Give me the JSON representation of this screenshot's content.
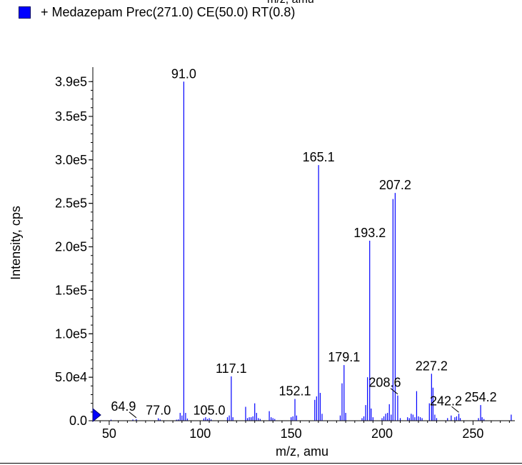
{
  "header": {
    "top_axis_label": "m/z, amu",
    "legend_label": "+ Medazepam Prec(271.0) CE(50.0) RT(0.8)"
  },
  "colors": {
    "series": "#0000ff",
    "axis": "#000000"
  },
  "chart_data": {
    "type": "bar",
    "xlabel": "m/z, amu",
    "ylabel": "Intensity, cps",
    "xlim": [
      41,
      273
    ],
    "ylim": [
      0,
      405000
    ],
    "x_ticks": [
      50,
      100,
      150,
      200,
      250
    ],
    "y_ticks": [
      {
        "value": 0,
        "label": "0.0"
      },
      {
        "value": 50000,
        "label": "5.0e4"
      },
      {
        "value": 100000,
        "label": "1.0e5"
      },
      {
        "value": 150000,
        "label": "1.5e5"
      },
      {
        "value": 200000,
        "label": "2.0e5"
      },
      {
        "value": 250000,
        "label": "2.5e5"
      },
      {
        "value": 300000,
        "label": "3.0e5"
      },
      {
        "value": 350000,
        "label": "3.5e5"
      },
      {
        "value": 390000,
        "label": "3.9e5"
      }
    ],
    "grid": false,
    "legend": "top-left",
    "peaks": [
      {
        "x": 51.0,
        "y": 1200
      },
      {
        "x": 63.0,
        "y": 1400
      },
      {
        "x": 64.9,
        "y": 1800
      },
      {
        "x": 77.0,
        "y": 2800
      },
      {
        "x": 78.0,
        "y": 1500
      },
      {
        "x": 87.0,
        "y": 1200
      },
      {
        "x": 88.0,
        "y": 1500
      },
      {
        "x": 89.0,
        "y": 9000
      },
      {
        "x": 90.0,
        "y": 6000
      },
      {
        "x": 91.0,
        "y": 390000
      },
      {
        "x": 92.0,
        "y": 9000
      },
      {
        "x": 93.0,
        "y": 2500
      },
      {
        "x": 102.0,
        "y": 2500
      },
      {
        "x": 103.0,
        "y": 4000
      },
      {
        "x": 104.0,
        "y": 2000
      },
      {
        "x": 105.0,
        "y": 3000
      },
      {
        "x": 106.0,
        "y": 1500
      },
      {
        "x": 115.0,
        "y": 4000
      },
      {
        "x": 116.0,
        "y": 6000
      },
      {
        "x": 117.1,
        "y": 51000
      },
      {
        "x": 118.0,
        "y": 4000
      },
      {
        "x": 125.0,
        "y": 16000
      },
      {
        "x": 126.0,
        "y": 3000
      },
      {
        "x": 127.0,
        "y": 4000
      },
      {
        "x": 128.0,
        "y": 4000
      },
      {
        "x": 129.0,
        "y": 5000
      },
      {
        "x": 130.0,
        "y": 20000
      },
      {
        "x": 131.0,
        "y": 9000
      },
      {
        "x": 132.0,
        "y": 3000
      },
      {
        "x": 133.0,
        "y": 2000
      },
      {
        "x": 138.0,
        "y": 11000
      },
      {
        "x": 139.0,
        "y": 4000
      },
      {
        "x": 140.0,
        "y": 3000
      },
      {
        "x": 141.0,
        "y": 2000
      },
      {
        "x": 150.0,
        "y": 4000
      },
      {
        "x": 151.0,
        "y": 5000
      },
      {
        "x": 152.1,
        "y": 25000
      },
      {
        "x": 153.0,
        "y": 6000
      },
      {
        "x": 163.0,
        "y": 24000
      },
      {
        "x": 164.0,
        "y": 28000
      },
      {
        "x": 165.1,
        "y": 294000
      },
      {
        "x": 166.0,
        "y": 32000
      },
      {
        "x": 167.0,
        "y": 8000
      },
      {
        "x": 177.0,
        "y": 6000
      },
      {
        "x": 178.0,
        "y": 43000
      },
      {
        "x": 179.1,
        "y": 64000
      },
      {
        "x": 180.0,
        "y": 9000
      },
      {
        "x": 189.0,
        "y": 3000
      },
      {
        "x": 190.0,
        "y": 5000
      },
      {
        "x": 191.0,
        "y": 18000
      },
      {
        "x": 192.0,
        "y": 50000
      },
      {
        "x": 193.2,
        "y": 207000
      },
      {
        "x": 194.0,
        "y": 14000
      },
      {
        "x": 195.0,
        "y": 4000
      },
      {
        "x": 200.0,
        "y": 3000
      },
      {
        "x": 201.0,
        "y": 5000
      },
      {
        "x": 202.0,
        "y": 8000
      },
      {
        "x": 203.0,
        "y": 9000
      },
      {
        "x": 204.0,
        "y": 19000
      },
      {
        "x": 205.0,
        "y": 7000
      },
      {
        "x": 206.0,
        "y": 255000
      },
      {
        "x": 207.2,
        "y": 262000
      },
      {
        "x": 208.6,
        "y": 29000
      },
      {
        "x": 210.0,
        "y": 3000
      },
      {
        "x": 214.0,
        "y": 4000
      },
      {
        "x": 215.0,
        "y": 3000
      },
      {
        "x": 216.0,
        "y": 8000
      },
      {
        "x": 217.0,
        "y": 7000
      },
      {
        "x": 218.0,
        "y": 4000
      },
      {
        "x": 219.0,
        "y": 34000
      },
      {
        "x": 220.0,
        "y": 5000
      },
      {
        "x": 221.0,
        "y": 4000
      },
      {
        "x": 222.0,
        "y": 3000
      },
      {
        "x": 226.0,
        "y": 20000
      },
      {
        "x": 227.2,
        "y": 54000
      },
      {
        "x": 228.0,
        "y": 38000
      },
      {
        "x": 229.0,
        "y": 7000
      },
      {
        "x": 230.0,
        "y": 3000
      },
      {
        "x": 236.0,
        "y": 3000
      },
      {
        "x": 238.0,
        "y": 6000
      },
      {
        "x": 240.0,
        "y": 4000
      },
      {
        "x": 241.0,
        "y": 5000
      },
      {
        "x": 242.2,
        "y": 8000
      },
      {
        "x": 243.0,
        "y": 3000
      },
      {
        "x": 253.0,
        "y": 3000
      },
      {
        "x": 254.2,
        "y": 18000
      },
      {
        "x": 255.0,
        "y": 4000
      },
      {
        "x": 256.0,
        "y": 2000
      },
      {
        "x": 271.0,
        "y": 7000
      }
    ],
    "peak_labels": [
      {
        "x": 91.0,
        "y": 390000,
        "label": "91.0"
      },
      {
        "x": 165.1,
        "y": 294000,
        "label": "165.1"
      },
      {
        "x": 207.2,
        "y": 262000,
        "label": "207.2"
      },
      {
        "x": 193.2,
        "y": 207000,
        "label": "193.2"
      },
      {
        "x": 179.1,
        "y": 64000,
        "label": "179.1"
      },
      {
        "x": 117.1,
        "y": 51000,
        "label": "117.1"
      },
      {
        "x": 227.2,
        "y": 54000,
        "label": "227.2"
      },
      {
        "x": 152.1,
        "y": 25000,
        "label": "152.1"
      },
      {
        "x": 208.6,
        "y": 29000,
        "label": "208.6",
        "leader": true
      },
      {
        "x": 254.2,
        "y": 18000,
        "label": "254.2"
      },
      {
        "x": 242.2,
        "y": 8000,
        "label": "242.2",
        "leader": true
      },
      {
        "x": 64.9,
        "y": 1800,
        "label": "64.9",
        "leader": true
      },
      {
        "x": 77.0,
        "y": 2800,
        "label": "77.0"
      },
      {
        "x": 105.0,
        "y": 3000,
        "label": "105.0"
      }
    ]
  }
}
